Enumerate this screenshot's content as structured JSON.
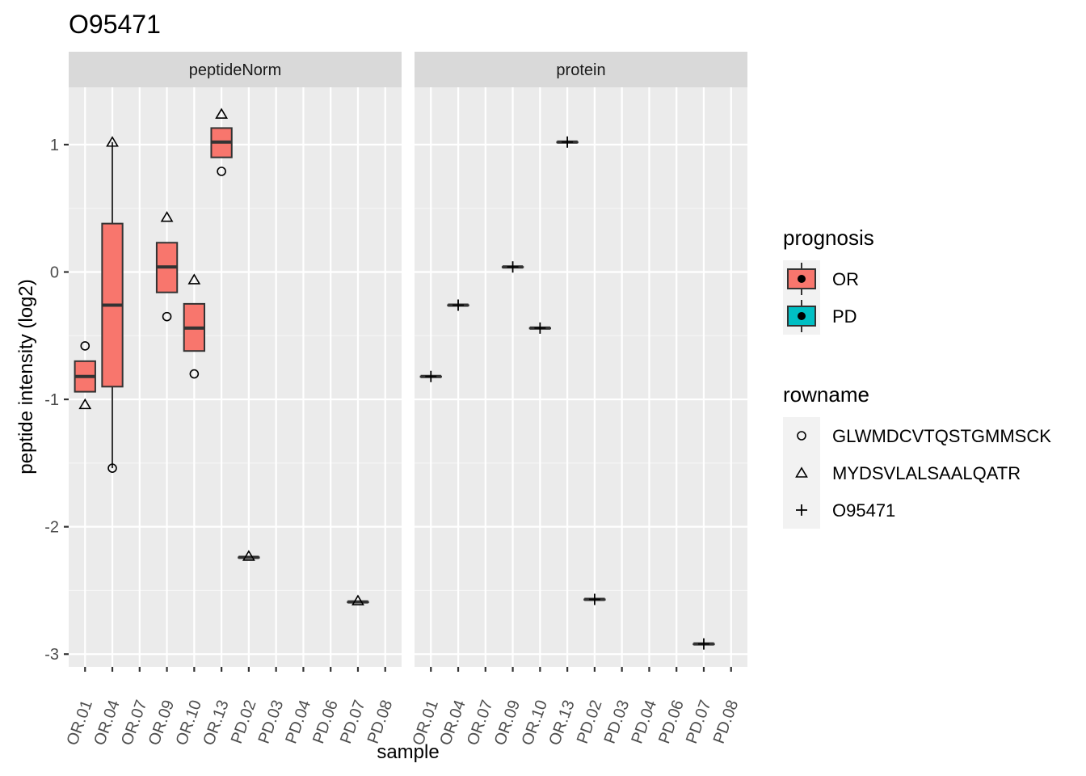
{
  "chart_data": {
    "type": "boxplot",
    "title": "O95471",
    "xlabel": "sample",
    "ylabel": "peptide intensity (log2)",
    "ylim": [
      -3.1,
      1.45
    ],
    "yticks": [
      -3,
      -2,
      -1,
      0,
      1
    ],
    "grid": true,
    "legend_position": "right",
    "categories": [
      "OR.01",
      "OR.04",
      "OR.07",
      "OR.09",
      "OR.10",
      "OR.13",
      "PD.02",
      "PD.03",
      "PD.04",
      "PD.06",
      "PD.07",
      "PD.08"
    ],
    "fill_colors": {
      "OR": "#F8766D",
      "PD": "#00BFC4"
    },
    "legends": [
      {
        "title": "prognosis",
        "items": [
          {
            "label": "OR",
            "color": "#F8766D"
          },
          {
            "label": "PD",
            "color": "#00BFC4"
          }
        ]
      },
      {
        "title": "rowname",
        "items": [
          {
            "label": "GLWMDCVTQSTGMMSCK",
            "shape": "circle"
          },
          {
            "label": "MYDSVLALSAALQATR",
            "shape": "triangle"
          },
          {
            "label": "O95471",
            "shape": "plus"
          }
        ]
      }
    ],
    "panels": [
      {
        "name": "peptideNorm",
        "boxes": [
          {
            "category": "OR.01",
            "group": "OR",
            "min": -0.94,
            "q1": -0.94,
            "median": -0.82,
            "q3": -0.7,
            "max": -0.7
          },
          {
            "category": "OR.04",
            "group": "OR",
            "min": -1.54,
            "q1": -0.9,
            "median": -0.26,
            "q3": 0.38,
            "max": 1.02
          },
          {
            "category": "OR.09",
            "group": "OR",
            "min": -0.16,
            "q1": -0.16,
            "median": 0.04,
            "q3": 0.23,
            "max": 0.23
          },
          {
            "category": "OR.10",
            "group": "OR",
            "min": -0.62,
            "q1": -0.62,
            "median": -0.44,
            "q3": -0.25,
            "max": -0.25
          },
          {
            "category": "OR.13",
            "group": "OR",
            "min": 0.9,
            "q1": 0.9,
            "median": 1.02,
            "q3": 1.13,
            "max": 1.13
          },
          {
            "category": "PD.02",
            "group": "OR",
            "min": -2.24,
            "q1": -2.24,
            "median": -2.24,
            "q3": -2.24,
            "max": -2.24
          },
          {
            "category": "PD.07",
            "group": "OR",
            "min": -2.59,
            "q1": -2.59,
            "median": -2.59,
            "q3": -2.59,
            "max": -2.59
          }
        ],
        "points": [
          {
            "category": "OR.01",
            "y": -0.58,
            "shape": "circle"
          },
          {
            "category": "OR.01",
            "y": -1.04,
            "shape": "triangle"
          },
          {
            "category": "OR.04",
            "y": 1.02,
            "shape": "triangle"
          },
          {
            "category": "OR.04",
            "y": -1.54,
            "shape": "circle"
          },
          {
            "category": "OR.09",
            "y": 0.43,
            "shape": "triangle"
          },
          {
            "category": "OR.09",
            "y": -0.35,
            "shape": "circle"
          },
          {
            "category": "OR.10",
            "y": -0.06,
            "shape": "triangle"
          },
          {
            "category": "OR.10",
            "y": -0.8,
            "shape": "circle"
          },
          {
            "category": "OR.13",
            "y": 1.24,
            "shape": "triangle"
          },
          {
            "category": "OR.13",
            "y": 0.79,
            "shape": "circle"
          },
          {
            "category": "PD.02",
            "y": -2.23,
            "shape": "triangle"
          },
          {
            "category": "PD.07",
            "y": -2.58,
            "shape": "triangle"
          }
        ]
      },
      {
        "name": "protein",
        "boxes": [
          {
            "category": "OR.01",
            "group": "OR",
            "min": -0.82,
            "q1": -0.82,
            "median": -0.82,
            "q3": -0.82,
            "max": -0.82
          },
          {
            "category": "OR.04",
            "group": "OR",
            "min": -0.26,
            "q1": -0.26,
            "median": -0.26,
            "q3": -0.26,
            "max": -0.26
          },
          {
            "category": "OR.09",
            "group": "OR",
            "min": 0.04,
            "q1": 0.04,
            "median": 0.04,
            "q3": 0.04,
            "max": 0.04
          },
          {
            "category": "OR.10",
            "group": "OR",
            "min": -0.44,
            "q1": -0.44,
            "median": -0.44,
            "q3": -0.44,
            "max": -0.44
          },
          {
            "category": "OR.13",
            "group": "OR",
            "min": 1.02,
            "q1": 1.02,
            "median": 1.02,
            "q3": 1.02,
            "max": 1.02
          },
          {
            "category": "PD.02",
            "group": "OR",
            "min": -2.57,
            "q1": -2.57,
            "median": -2.57,
            "q3": -2.57,
            "max": -2.57
          },
          {
            "category": "PD.07",
            "group": "OR",
            "min": -2.92,
            "q1": -2.92,
            "median": -2.92,
            "q3": -2.92,
            "max": -2.92
          }
        ],
        "points": [
          {
            "category": "OR.01",
            "y": -0.82,
            "shape": "plus"
          },
          {
            "category": "OR.04",
            "y": -0.26,
            "shape": "plus"
          },
          {
            "category": "OR.09",
            "y": 0.04,
            "shape": "plus"
          },
          {
            "category": "OR.10",
            "y": -0.44,
            "shape": "plus"
          },
          {
            "category": "OR.13",
            "y": 1.02,
            "shape": "plus"
          },
          {
            "category": "PD.02",
            "y": -2.57,
            "shape": "plus"
          },
          {
            "category": "PD.07",
            "y": -2.92,
            "shape": "plus"
          }
        ]
      }
    ]
  }
}
